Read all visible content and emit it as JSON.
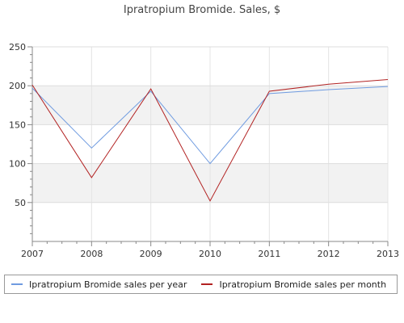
{
  "chart_data": {
    "type": "line",
    "title": "Ipratropium Bromide. Sales, $",
    "xlabel": "",
    "ylabel": "",
    "x": [
      "2007",
      "2008",
      "2009",
      "2010",
      "2011",
      "2012",
      "2013"
    ],
    "yticks": [
      50,
      100,
      150,
      200,
      250
    ],
    "ylim": [
      0,
      250
    ],
    "grid": true,
    "legend_position": "bottom",
    "series": [
      {
        "name": "Ipratropium Bromide sales per year",
        "color": "#6f9be0",
        "values": [
          197,
          120,
          193,
          100,
          190,
          195,
          199
        ]
      },
      {
        "name": "Ipratropium Bromide sales per month",
        "color": "#b22222",
        "values": [
          201,
          82,
          196,
          52,
          193,
          202,
          208
        ]
      }
    ]
  }
}
